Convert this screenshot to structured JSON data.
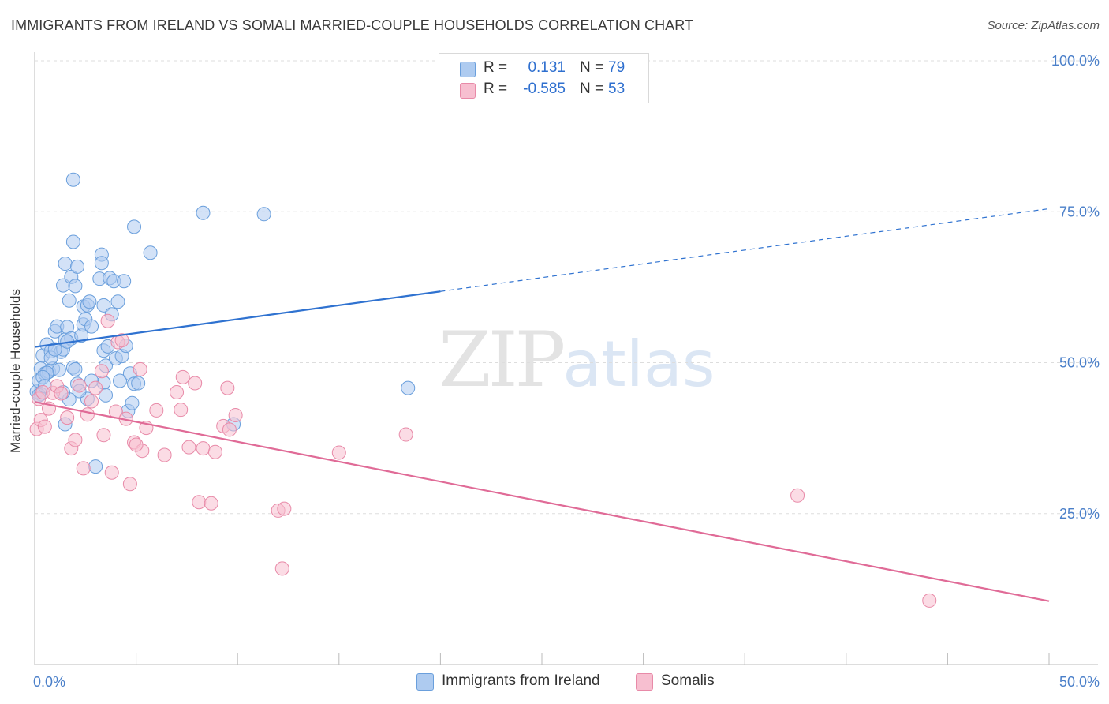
{
  "title": "IMMIGRANTS FROM IRELAND VS SOMALI MARRIED-COUPLE HOUSEHOLDS CORRELATION CHART",
  "source": "Source: ZipAtlas.com",
  "watermark": {
    "zip": "ZIP",
    "atlas": "atlas"
  },
  "colors": {
    "blue_fill": "#aecbf0",
    "blue_stroke": "#6a9fdc",
    "blue_line": "#2f72d0",
    "pink_fill": "#f7bfd0",
    "pink_stroke": "#e88aa8",
    "pink_line": "#e06b97",
    "grid": "#dddddd",
    "tick_text": "#4a7fc9"
  },
  "legend": {
    "rows": [
      {
        "r_label": "R =",
        "r_value": "0.131",
        "n_label": "N =",
        "n_value": "79",
        "color": "#aecbf0",
        "border": "#6a9fdc"
      },
      {
        "r_label": "R =",
        "r_value": "-0.585",
        "n_label": "N =",
        "n_value": "53",
        "color": "#f7bfd0",
        "border": "#e88aa8"
      }
    ]
  },
  "bottom_legend": [
    {
      "label": "Immigrants from Ireland",
      "color": "#aecbf0",
      "border": "#6a9fdc"
    },
    {
      "label": "Somalis",
      "color": "#f7bfd0",
      "border": "#e88aa8"
    }
  ],
  "chart_data": {
    "type": "scatter",
    "title": "IMMIGRANTS FROM IRELAND VS SOMALI MARRIED-COUPLE HOUSEHOLDS CORRELATION CHART",
    "xlabel": "",
    "ylabel": "Married-couple Households",
    "xlim": [
      0,
      50
    ],
    "ylim": [
      0,
      100
    ],
    "x_tick_labels": [
      "0.0%",
      "50.0%"
    ],
    "y_ticks": [
      25,
      50,
      75,
      100
    ],
    "y_tick_labels": [
      "25.0%",
      "50.0%",
      "75.0%",
      "100.0%"
    ],
    "grid": true,
    "series": [
      {
        "name": "Immigrants from Ireland",
        "r": 0.131,
        "n": 79,
        "trend": {
          "x0": 0,
          "y0": 52.6,
          "x1": 20,
          "y1": 61.8,
          "x_dashed_end": 50,
          "y_dashed_end": 75.5
        },
        "points": [
          [
            0.1,
            45.2
          ],
          [
            0.2,
            47.0
          ],
          [
            0.3,
            44.8
          ],
          [
            0.3,
            49.0
          ],
          [
            0.4,
            51.2
          ],
          [
            0.5,
            48.2
          ],
          [
            0.6,
            53.0
          ],
          [
            0.7,
            48.5
          ],
          [
            0.8,
            51.9
          ],
          [
            0.9,
            49.0
          ],
          [
            1.0,
            55.2
          ],
          [
            1.1,
            56.0
          ],
          [
            1.2,
            48.8
          ],
          [
            1.3,
            51.8
          ],
          [
            1.4,
            52.2
          ],
          [
            1.5,
            53.8
          ],
          [
            1.6,
            55.9
          ],
          [
            1.7,
            43.9
          ],
          [
            1.8,
            54.0
          ],
          [
            1.9,
            49.2
          ],
          [
            1.4,
            45.1
          ],
          [
            1.5,
            39.8
          ],
          [
            1.4,
            62.8
          ],
          [
            1.5,
            66.4
          ],
          [
            1.7,
            60.3
          ],
          [
            1.8,
            64.2
          ],
          [
            1.9,
            70.0
          ],
          [
            2.0,
            62.7
          ],
          [
            2.1,
            65.9
          ],
          [
            1.9,
            80.3
          ],
          [
            2.0,
            48.9
          ],
          [
            2.1,
            46.5
          ],
          [
            2.3,
            54.5
          ],
          [
            2.4,
            56.3
          ],
          [
            2.4,
            59.3
          ],
          [
            2.5,
            57.2
          ],
          [
            2.6,
            44.0
          ],
          [
            2.6,
            59.5
          ],
          [
            2.7,
            60.1
          ],
          [
            2.8,
            56.0
          ],
          [
            3.2,
            63.9
          ],
          [
            3.3,
            67.9
          ],
          [
            3.3,
            66.5
          ],
          [
            3.4,
            59.5
          ],
          [
            3.4,
            46.7
          ],
          [
            3.4,
            52.0
          ],
          [
            3.5,
            49.5
          ],
          [
            3.5,
            44.6
          ],
          [
            3.6,
            52.7
          ],
          [
            3.7,
            64.0
          ],
          [
            3.8,
            58.0
          ],
          [
            3.9,
            63.5
          ],
          [
            4.0,
            50.7
          ],
          [
            4.1,
            60.1
          ],
          [
            4.2,
            47.0
          ],
          [
            4.3,
            51.1
          ],
          [
            4.4,
            63.5
          ],
          [
            4.5,
            52.8
          ],
          [
            4.6,
            42.0
          ],
          [
            4.7,
            48.2
          ],
          [
            4.8,
            43.3
          ],
          [
            4.9,
            72.5
          ],
          [
            4.9,
            46.5
          ],
          [
            5.1,
            46.6
          ],
          [
            5.7,
            68.2
          ],
          [
            3.0,
            32.8
          ],
          [
            0.2,
            44.6
          ],
          [
            0.6,
            48.3
          ],
          [
            0.4,
            47.6
          ],
          [
            8.3,
            74.8
          ],
          [
            11.3,
            74.6
          ],
          [
            9.8,
            39.8
          ],
          [
            18.4,
            45.8
          ],
          [
            2.2,
            45.3
          ],
          [
            0.8,
            50.8
          ],
          [
            1.0,
            52.2
          ],
          [
            1.6,
            53.5
          ],
          [
            2.8,
            47.0
          ],
          [
            0.5,
            46.1
          ]
        ]
      },
      {
        "name": "Somalis",
        "r": -0.585,
        "n": 53,
        "trend": {
          "x0": 0,
          "y0": 43.5,
          "x1": 50,
          "y1": 10.5
        },
        "points": [
          [
            0.1,
            39.0
          ],
          [
            0.2,
            44.0
          ],
          [
            0.3,
            40.5
          ],
          [
            0.4,
            45.1
          ],
          [
            0.5,
            39.4
          ],
          [
            0.7,
            42.4
          ],
          [
            0.9,
            45.0
          ],
          [
            1.1,
            46.1
          ],
          [
            1.3,
            44.9
          ],
          [
            1.6,
            40.9
          ],
          [
            1.8,
            35.8
          ],
          [
            2.0,
            37.2
          ],
          [
            2.2,
            46.2
          ],
          [
            2.4,
            32.5
          ],
          [
            2.6,
            41.4
          ],
          [
            2.8,
            43.6
          ],
          [
            3.0,
            45.8
          ],
          [
            3.3,
            48.6
          ],
          [
            3.4,
            38.0
          ],
          [
            3.6,
            56.9
          ],
          [
            3.8,
            31.8
          ],
          [
            4.0,
            41.9
          ],
          [
            4.1,
            53.4
          ],
          [
            4.3,
            53.7
          ],
          [
            4.5,
            40.7
          ],
          [
            4.7,
            29.9
          ],
          [
            4.9,
            36.8
          ],
          [
            5.2,
            48.9
          ],
          [
            5.3,
            35.4
          ],
          [
            5.5,
            39.2
          ],
          [
            6.0,
            42.1
          ],
          [
            6.4,
            34.7
          ],
          [
            7.0,
            45.1
          ],
          [
            7.2,
            42.2
          ],
          [
            7.3,
            47.6
          ],
          [
            7.6,
            36.0
          ],
          [
            7.9,
            46.6
          ],
          [
            8.1,
            26.9
          ],
          [
            8.3,
            35.8
          ],
          [
            8.7,
            26.7
          ],
          [
            8.9,
            35.2
          ],
          [
            9.3,
            39.5
          ],
          [
            9.6,
            38.9
          ],
          [
            9.9,
            41.3
          ],
          [
            12.0,
            25.5
          ],
          [
            12.2,
            15.9
          ],
          [
            12.3,
            25.8
          ],
          [
            15.0,
            35.1
          ],
          [
            18.3,
            38.1
          ],
          [
            37.6,
            28.0
          ],
          [
            44.1,
            10.6
          ],
          [
            5.0,
            36.4
          ],
          [
            9.5,
            45.8
          ]
        ]
      }
    ]
  }
}
